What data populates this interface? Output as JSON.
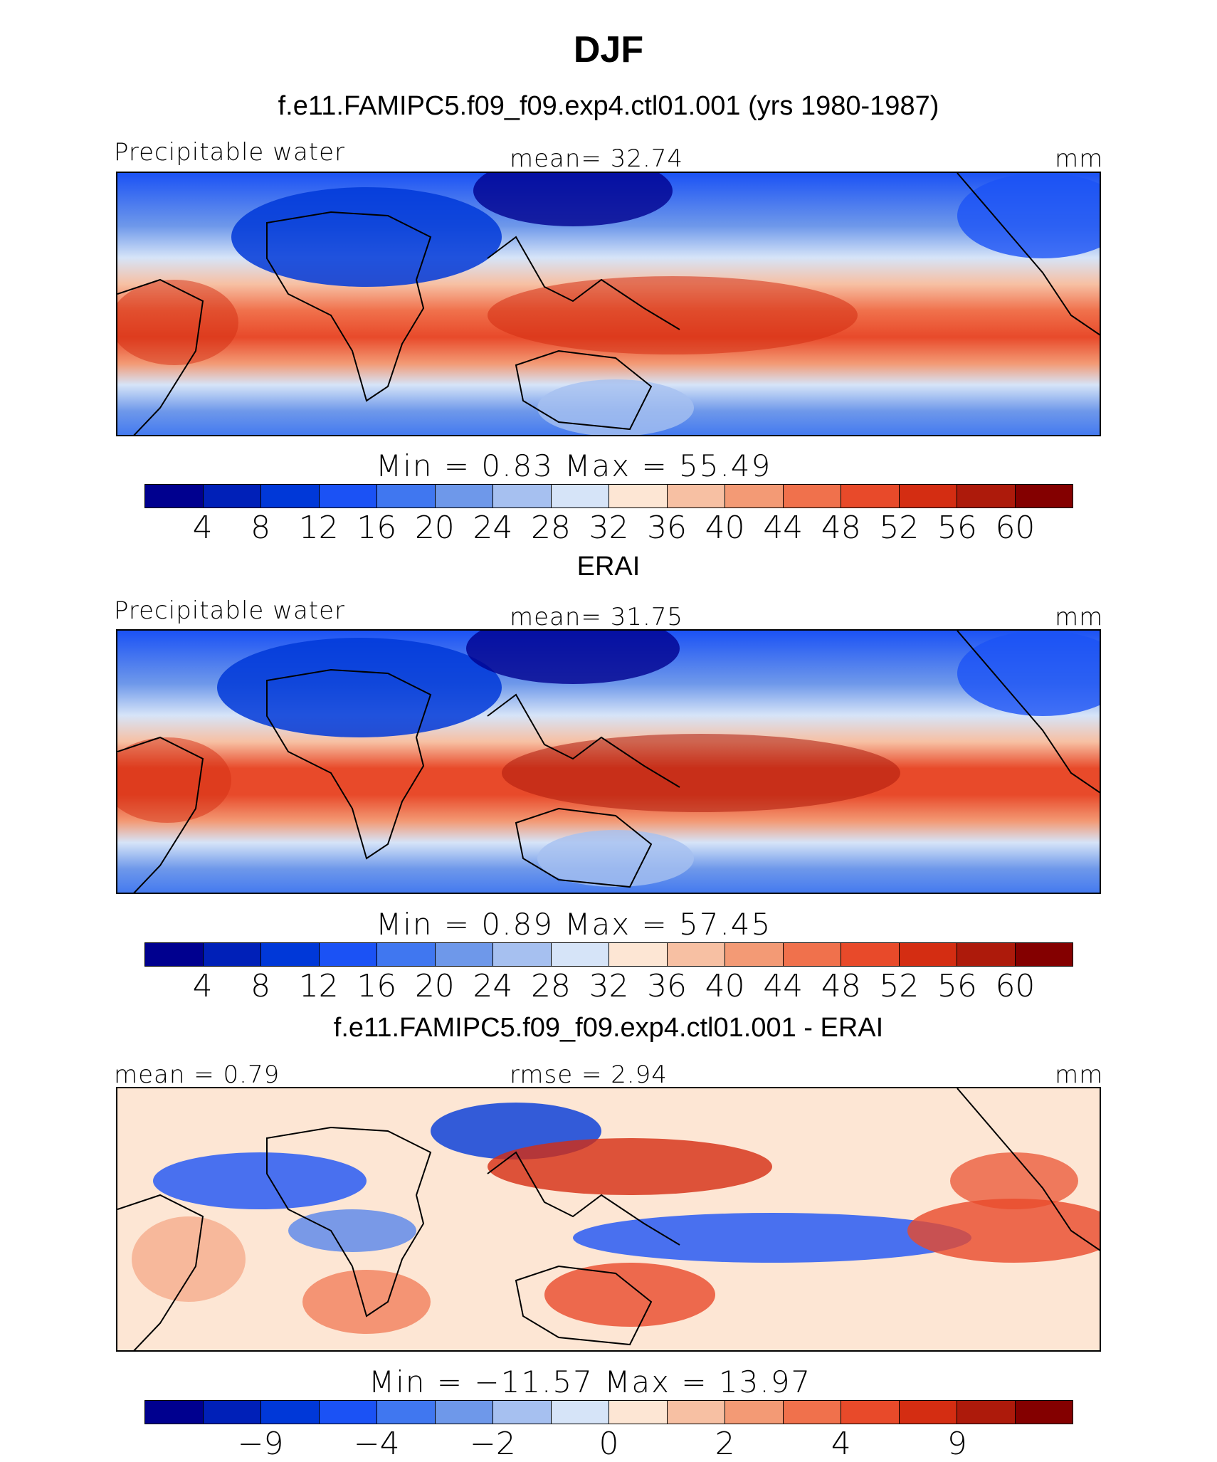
{
  "figure": {
    "season_title": "DJF"
  },
  "panels": [
    {
      "subtitle": "f.e11.FAMIPC5.f09_f09.exp4.ctl01.001 (yrs 1980-1987)",
      "left_label": "Precipitable water",
      "center_label": "mean=   32.74",
      "units": "mm",
      "minmax": "Min  =     0.83  Max  =    55.49",
      "ticks": [
        "4",
        "8",
        "12",
        "16",
        "20",
        "24",
        "28",
        "32",
        "36",
        "40",
        "44",
        "48",
        "52",
        "56",
        "60"
      ],
      "palette": "abs"
    },
    {
      "subtitle": "ERAI",
      "left_label": "Precipitable water",
      "center_label": "mean=   31.75",
      "units": "mm",
      "minmax": "Min  =     0.89  Max  =    57.45",
      "ticks": [
        "4",
        "8",
        "12",
        "16",
        "20",
        "24",
        "28",
        "32",
        "36",
        "40",
        "44",
        "48",
        "52",
        "56",
        "60"
      ],
      "palette": "abs"
    },
    {
      "subtitle": "f.e11.FAMIPC5.f09_f09.exp4.ctl01.001 - ERAI",
      "left_label": "mean  =    0.79",
      "center_label": "rmse  =    2.94",
      "units": "mm",
      "minmax": "Min  = −11.57  Max  =    13.97",
      "ticks": [
        "−9",
        "−4",
        "−2",
        "0",
        "2",
        "4",
        "9"
      ],
      "palette": "diff"
    }
  ],
  "colors": {
    "palette16": [
      "#00008f",
      "#0020b8",
      "#0038d8",
      "#1b52f5",
      "#4077f0",
      "#6e98ea",
      "#a6c0f0",
      "#d6e4f8",
      "#fde6d4",
      "#f7c0a3",
      "#f39a75",
      "#f0714c",
      "#e84a2a",
      "#d42d12",
      "#ad1a0b",
      "#840000"
    ]
  }
}
